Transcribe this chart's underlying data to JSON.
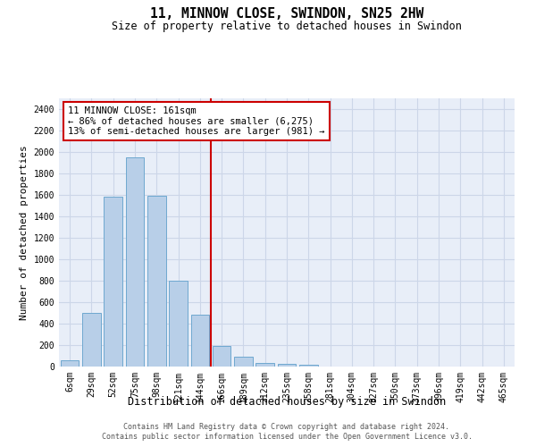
{
  "title": "11, MINNOW CLOSE, SWINDON, SN25 2HW",
  "subtitle": "Size of property relative to detached houses in Swindon",
  "xlabel": "Distribution of detached houses by size in Swindon",
  "ylabel": "Number of detached properties",
  "bar_labels": [
    "6sqm",
    "29sqm",
    "52sqm",
    "75sqm",
    "98sqm",
    "121sqm",
    "144sqm",
    "166sqm",
    "189sqm",
    "212sqm",
    "235sqm",
    "258sqm",
    "281sqm",
    "304sqm",
    "327sqm",
    "350sqm",
    "373sqm",
    "396sqm",
    "419sqm",
    "442sqm",
    "465sqm"
  ],
  "bar_values": [
    60,
    500,
    1580,
    1950,
    1590,
    800,
    480,
    195,
    90,
    35,
    25,
    20,
    0,
    0,
    0,
    0,
    0,
    0,
    0,
    0,
    0
  ],
  "bar_color": "#b8cfe8",
  "bar_edge_color": "#6fa8d0",
  "grid_color": "#ccd6e8",
  "background_color": "#e8eef8",
  "vline_x": 6.5,
  "vline_color": "#cc0000",
  "annotation_text": "11 MINNOW CLOSE: 161sqm\n← 86% of detached houses are smaller (6,275)\n13% of semi-detached houses are larger (981) →",
  "annotation_box_color": "#ffffff",
  "annotation_box_edge": "#cc0000",
  "footer_line1": "Contains HM Land Registry data © Crown copyright and database right 2024.",
  "footer_line2": "Contains public sector information licensed under the Open Government Licence v3.0.",
  "ylim": [
    0,
    2500
  ],
  "yticks": [
    0,
    200,
    400,
    600,
    800,
    1000,
    1200,
    1400,
    1600,
    1800,
    2000,
    2200,
    2400
  ],
  "title_fontsize": 10.5,
  "subtitle_fontsize": 8.5,
  "tick_fontsize": 7,
  "ylabel_fontsize": 8,
  "xlabel_fontsize": 8.5,
  "annot_fontsize": 7.5,
  "footer_fontsize": 6
}
